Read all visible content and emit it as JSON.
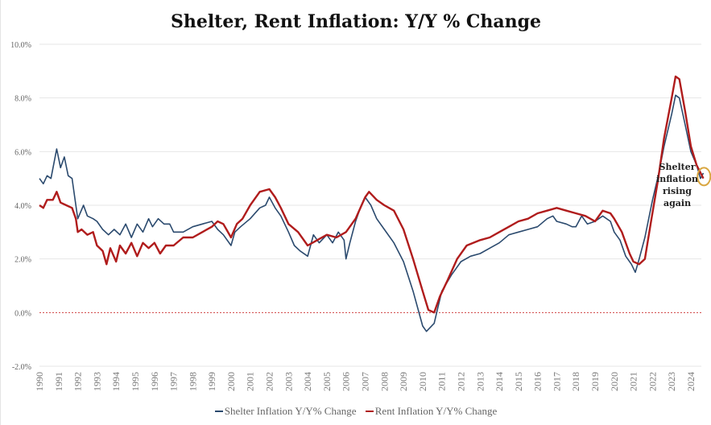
{
  "chart_data": {
    "type": "line",
    "title": "Shelter, Rent Inflation: Y/Y % Change",
    "xlabel": "",
    "ylabel": "",
    "ylim": [
      -2,
      10
    ],
    "xlim": [
      1990,
      2024.8
    ],
    "y_ticks": [
      "-2.0%",
      "0.0%",
      "2.0%",
      "4.0%",
      "6.0%",
      "8.0%",
      "10.0%"
    ],
    "y_tick_values": [
      -2,
      0,
      2,
      4,
      6,
      8,
      10
    ],
    "x_ticks": [
      "1990",
      "1991",
      "1992",
      "1993",
      "1994",
      "1995",
      "1996",
      "1997",
      "1998",
      "1999",
      "2000",
      "2001",
      "2002",
      "2003",
      "2004",
      "2005",
      "2006",
      "2007",
      "2008",
      "2009",
      "2010",
      "2011",
      "2012",
      "2013",
      "2014",
      "2015",
      "2016",
      "2017",
      "2018",
      "2019",
      "2020",
      "2021",
      "2022",
      "2023",
      "2024"
    ],
    "grid": true,
    "zero_line": {
      "value": 0,
      "style": "dotted",
      "color": "#d04040"
    },
    "legend_placement": "bottom",
    "annotation": {
      "text": [
        "Shelter",
        "inflation",
        "rising",
        "again"
      ],
      "x": 2024.6,
      "y": 5.1,
      "circle_color": "#d9a640"
    },
    "series": [
      {
        "name": "Shelter Inflation Y/Y% Change",
        "color": "#2b4a6e",
        "points": [
          [
            1990.0,
            5.0
          ],
          [
            1990.2,
            4.8
          ],
          [
            1990.4,
            5.1
          ],
          [
            1990.6,
            5.0
          ],
          [
            1990.9,
            6.1
          ],
          [
            1991.1,
            5.4
          ],
          [
            1991.3,
            5.8
          ],
          [
            1991.5,
            5.1
          ],
          [
            1991.7,
            5.0
          ],
          [
            1991.9,
            4.0
          ],
          [
            1992.0,
            3.5
          ],
          [
            1992.3,
            4.0
          ],
          [
            1992.5,
            3.6
          ],
          [
            1992.8,
            3.5
          ],
          [
            1993.0,
            3.4
          ],
          [
            1993.3,
            3.1
          ],
          [
            1993.6,
            2.9
          ],
          [
            1993.9,
            3.1
          ],
          [
            1994.2,
            2.9
          ],
          [
            1994.5,
            3.3
          ],
          [
            1994.8,
            2.8
          ],
          [
            1995.1,
            3.3
          ],
          [
            1995.4,
            3.0
          ],
          [
            1995.7,
            3.5
          ],
          [
            1995.9,
            3.2
          ],
          [
            1996.2,
            3.5
          ],
          [
            1996.5,
            3.3
          ],
          [
            1996.8,
            3.3
          ],
          [
            1997.0,
            3.0
          ],
          [
            1997.5,
            3.0
          ],
          [
            1998.0,
            3.2
          ],
          [
            1998.5,
            3.3
          ],
          [
            1999.0,
            3.4
          ],
          [
            1999.3,
            3.1
          ],
          [
            1999.6,
            2.9
          ],
          [
            2000.0,
            2.5
          ],
          [
            2000.2,
            3.0
          ],
          [
            2000.5,
            3.2
          ],
          [
            2001.0,
            3.5
          ],
          [
            2001.5,
            3.9
          ],
          [
            2001.8,
            4.0
          ],
          [
            2002.0,
            4.3
          ],
          [
            2002.3,
            3.9
          ],
          [
            2002.6,
            3.6
          ],
          [
            2003.0,
            3.0
          ],
          [
            2003.3,
            2.5
          ],
          [
            2003.6,
            2.3
          ],
          [
            2004.0,
            2.1
          ],
          [
            2004.3,
            2.9
          ],
          [
            2004.6,
            2.6
          ],
          [
            2005.0,
            2.9
          ],
          [
            2005.3,
            2.6
          ],
          [
            2005.6,
            3.0
          ],
          [
            2005.9,
            2.7
          ],
          [
            2006.0,
            2.0
          ],
          [
            2006.2,
            2.6
          ],
          [
            2006.5,
            3.4
          ],
          [
            2006.8,
            4.0
          ],
          [
            2007.0,
            4.3
          ],
          [
            2007.3,
            4.0
          ],
          [
            2007.6,
            3.5
          ],
          [
            2008.0,
            3.1
          ],
          [
            2008.5,
            2.6
          ],
          [
            2009.0,
            1.9
          ],
          [
            2009.5,
            0.8
          ],
          [
            2010.0,
            -0.5
          ],
          [
            2010.2,
            -0.7
          ],
          [
            2010.6,
            -0.4
          ],
          [
            2010.8,
            0.2
          ],
          [
            2011.0,
            0.8
          ],
          [
            2011.5,
            1.4
          ],
          [
            2012.0,
            1.9
          ],
          [
            2012.5,
            2.1
          ],
          [
            2013.0,
            2.2
          ],
          [
            2013.5,
            2.4
          ],
          [
            2014.0,
            2.6
          ],
          [
            2014.5,
            2.9
          ],
          [
            2015.0,
            3.0
          ],
          [
            2015.5,
            3.1
          ],
          [
            2016.0,
            3.2
          ],
          [
            2016.5,
            3.5
          ],
          [
            2016.8,
            3.6
          ],
          [
            2017.0,
            3.4
          ],
          [
            2017.5,
            3.3
          ],
          [
            2017.8,
            3.2
          ],
          [
            2018.0,
            3.2
          ],
          [
            2018.3,
            3.6
          ],
          [
            2018.6,
            3.3
          ],
          [
            2019.0,
            3.4
          ],
          [
            2019.4,
            3.6
          ],
          [
            2019.8,
            3.4
          ],
          [
            2020.0,
            3.0
          ],
          [
            2020.3,
            2.7
          ],
          [
            2020.6,
            2.1
          ],
          [
            2020.9,
            1.8
          ],
          [
            2021.1,
            1.5
          ],
          [
            2021.3,
            2.0
          ],
          [
            2021.6,
            2.8
          ],
          [
            2022.0,
            4.2
          ],
          [
            2022.3,
            5.1
          ],
          [
            2022.6,
            6.2
          ],
          [
            2023.0,
            7.4
          ],
          [
            2023.2,
            8.1
          ],
          [
            2023.4,
            8.0
          ],
          [
            2023.7,
            7.0
          ],
          [
            2024.0,
            6.0
          ],
          [
            2024.3,
            5.5
          ],
          [
            2024.5,
            5.0
          ],
          [
            2024.65,
            5.2
          ]
        ]
      },
      {
        "name": "Rent Inflation Y/Y% Change",
        "color": "#b01c1c",
        "points": [
          [
            1990.0,
            4.0
          ],
          [
            1990.2,
            3.9
          ],
          [
            1990.4,
            4.2
          ],
          [
            1990.7,
            4.2
          ],
          [
            1990.9,
            4.5
          ],
          [
            1991.1,
            4.1
          ],
          [
            1991.4,
            4.0
          ],
          [
            1991.7,
            3.9
          ],
          [
            1991.9,
            3.5
          ],
          [
            1992.0,
            3.0
          ],
          [
            1992.2,
            3.1
          ],
          [
            1992.5,
            2.9
          ],
          [
            1992.8,
            3.0
          ],
          [
            1993.0,
            2.5
          ],
          [
            1993.3,
            2.3
          ],
          [
            1993.5,
            1.8
          ],
          [
            1993.7,
            2.4
          ],
          [
            1994.0,
            1.9
          ],
          [
            1994.2,
            2.5
          ],
          [
            1994.5,
            2.2
          ],
          [
            1994.8,
            2.6
          ],
          [
            1995.1,
            2.1
          ],
          [
            1995.4,
            2.6
          ],
          [
            1995.7,
            2.4
          ],
          [
            1996.0,
            2.6
          ],
          [
            1996.3,
            2.2
          ],
          [
            1996.6,
            2.5
          ],
          [
            1997.0,
            2.5
          ],
          [
            1997.5,
            2.8
          ],
          [
            1998.0,
            2.8
          ],
          [
            1998.5,
            3.0
          ],
          [
            1999.0,
            3.2
          ],
          [
            1999.3,
            3.4
          ],
          [
            1999.6,
            3.3
          ],
          [
            2000.0,
            2.8
          ],
          [
            2000.3,
            3.3
          ],
          [
            2000.6,
            3.5
          ],
          [
            2001.0,
            4.0
          ],
          [
            2001.5,
            4.5
          ],
          [
            2002.0,
            4.6
          ],
          [
            2002.3,
            4.3
          ],
          [
            2002.6,
            3.9
          ],
          [
            2003.0,
            3.3
          ],
          [
            2003.5,
            3.0
          ],
          [
            2004.0,
            2.5
          ],
          [
            2004.5,
            2.7
          ],
          [
            2005.0,
            2.9
          ],
          [
            2005.5,
            2.8
          ],
          [
            2006.0,
            3.0
          ],
          [
            2006.5,
            3.5
          ],
          [
            2007.0,
            4.3
          ],
          [
            2007.2,
            4.5
          ],
          [
            2007.6,
            4.2
          ],
          [
            2008.0,
            4.0
          ],
          [
            2008.5,
            3.8
          ],
          [
            2009.0,
            3.1
          ],
          [
            2009.5,
            2.0
          ],
          [
            2010.0,
            0.8
          ],
          [
            2010.3,
            0.1
          ],
          [
            2010.6,
            0.0
          ],
          [
            2010.9,
            0.6
          ],
          [
            2011.3,
            1.2
          ],
          [
            2011.8,
            2.0
          ],
          [
            2012.3,
            2.5
          ],
          [
            2013.0,
            2.7
          ],
          [
            2013.5,
            2.8
          ],
          [
            2014.0,
            3.0
          ],
          [
            2014.5,
            3.2
          ],
          [
            2015.0,
            3.4
          ],
          [
            2015.5,
            3.5
          ],
          [
            2016.0,
            3.7
          ],
          [
            2016.5,
            3.8
          ],
          [
            2017.0,
            3.9
          ],
          [
            2017.5,
            3.8
          ],
          [
            2018.0,
            3.7
          ],
          [
            2018.5,
            3.6
          ],
          [
            2019.0,
            3.4
          ],
          [
            2019.4,
            3.8
          ],
          [
            2019.8,
            3.7
          ],
          [
            2020.0,
            3.5
          ],
          [
            2020.4,
            3.0
          ],
          [
            2020.8,
            2.2
          ],
          [
            2021.0,
            1.9
          ],
          [
            2021.3,
            1.8
          ],
          [
            2021.6,
            2.0
          ],
          [
            2021.9,
            3.3
          ],
          [
            2022.3,
            5.0
          ],
          [
            2022.6,
            6.5
          ],
          [
            2023.0,
            8.0
          ],
          [
            2023.2,
            8.8
          ],
          [
            2023.4,
            8.7
          ],
          [
            2023.7,
            7.5
          ],
          [
            2024.0,
            6.2
          ],
          [
            2024.3,
            5.5
          ],
          [
            2024.65,
            5.0
          ]
        ]
      }
    ]
  }
}
